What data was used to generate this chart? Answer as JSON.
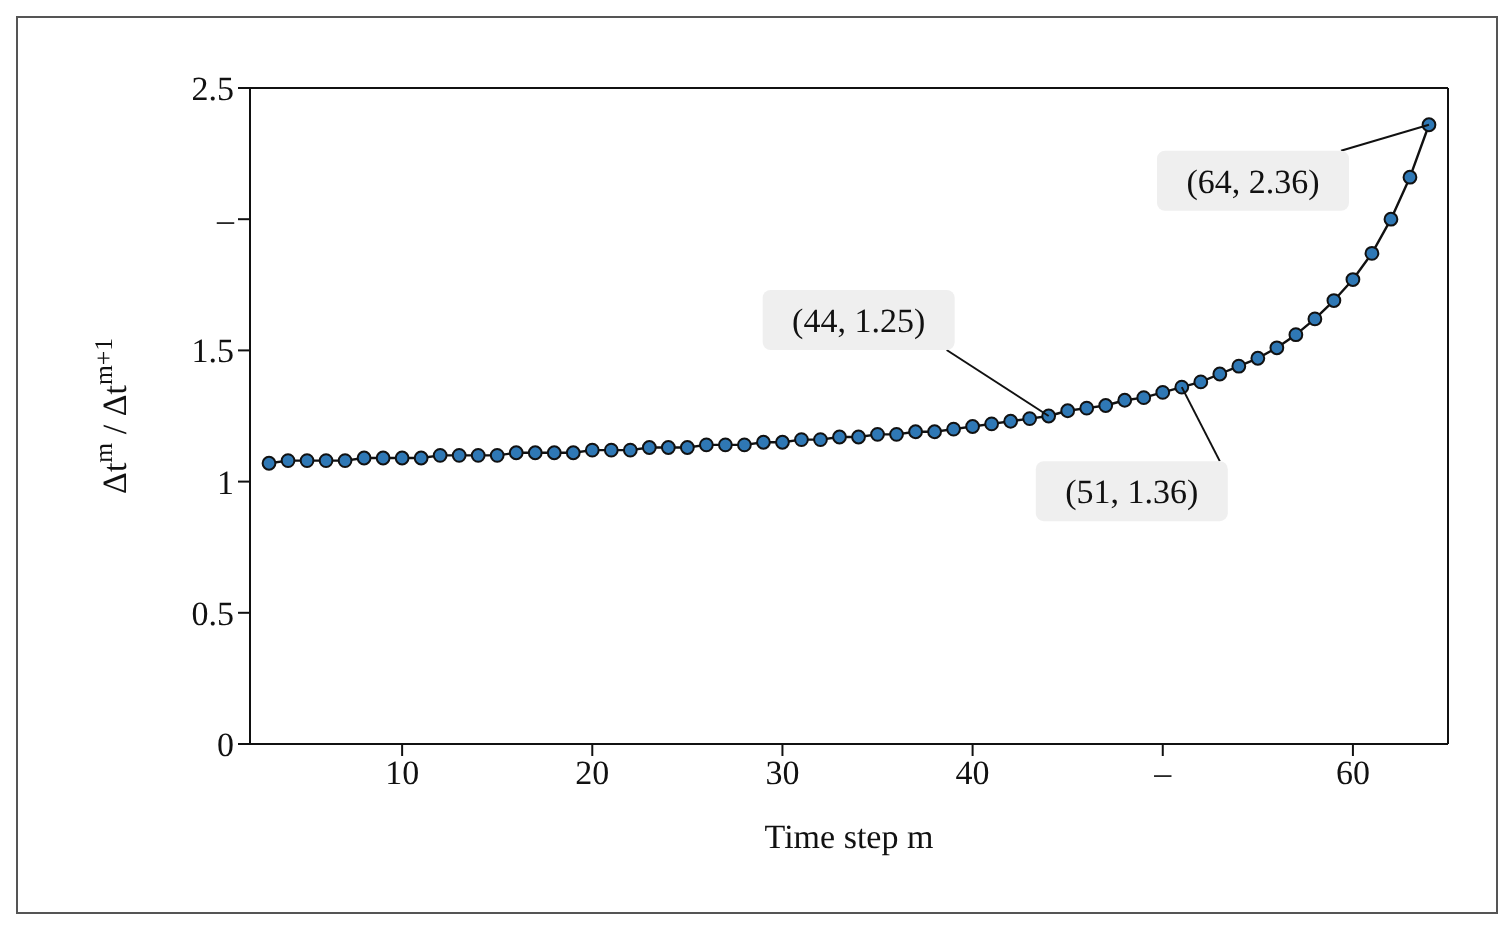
{
  "chart_data": {
    "type": "line",
    "xlabel": "Time step m",
    "ylabel": "Δt$^{m}$ / Δt$^{m+1}$",
    "x": [
      3,
      4,
      5,
      6,
      7,
      8,
      9,
      10,
      11,
      12,
      13,
      14,
      15,
      16,
      17,
      18,
      19,
      20,
      21,
      22,
      23,
      24,
      25,
      26,
      27,
      28,
      29,
      30,
      31,
      32,
      33,
      34,
      35,
      36,
      37,
      38,
      39,
      40,
      41,
      42,
      43,
      44,
      45,
      46,
      47,
      48,
      49,
      50,
      51,
      52,
      53,
      54,
      55,
      56,
      57,
      58,
      59,
      60,
      61,
      62,
      63,
      64
    ],
    "series": [
      {
        "color": "#2f78b5",
        "values": [
          1.07,
          1.08,
          1.08,
          1.08,
          1.08,
          1.09,
          1.09,
          1.09,
          1.09,
          1.1,
          1.1,
          1.1,
          1.1,
          1.11,
          1.11,
          1.11,
          1.11,
          1.12,
          1.12,
          1.12,
          1.13,
          1.13,
          1.13,
          1.14,
          1.14,
          1.14,
          1.15,
          1.15,
          1.16,
          1.16,
          1.17,
          1.17,
          1.18,
          1.18,
          1.19,
          1.19,
          1.2,
          1.21,
          1.22,
          1.23,
          1.24,
          1.25,
          1.27,
          1.28,
          1.29,
          1.31,
          1.32,
          1.34,
          1.36,
          1.38,
          1.41,
          1.44,
          1.47,
          1.51,
          1.56,
          1.62,
          1.69,
          1.77,
          1.87,
          2.0,
          2.16,
          2.36
        ]
      }
    ],
    "xlim": [
      2,
      65
    ],
    "xticks": [
      10,
      20,
      30,
      40,
      {
        "value": 50,
        "label": "–"
      },
      60
    ],
    "ylim": [
      0,
      2.5
    ],
    "yticks": [
      0,
      0.5,
      1,
      1.5,
      {
        "value": 2,
        "label": "–"
      },
      2.5
    ],
    "marker": "circle",
    "line_style": "solid",
    "annotations": [
      {
        "text": "(44, 1.25)",
        "x": 44,
        "y": 1.25
      },
      {
        "text": "(51, 1.36)",
        "x": 51,
        "y": 1.36
      },
      {
        "text": "(64, 2.36)",
        "x": 64,
        "y": 2.36
      }
    ]
  }
}
